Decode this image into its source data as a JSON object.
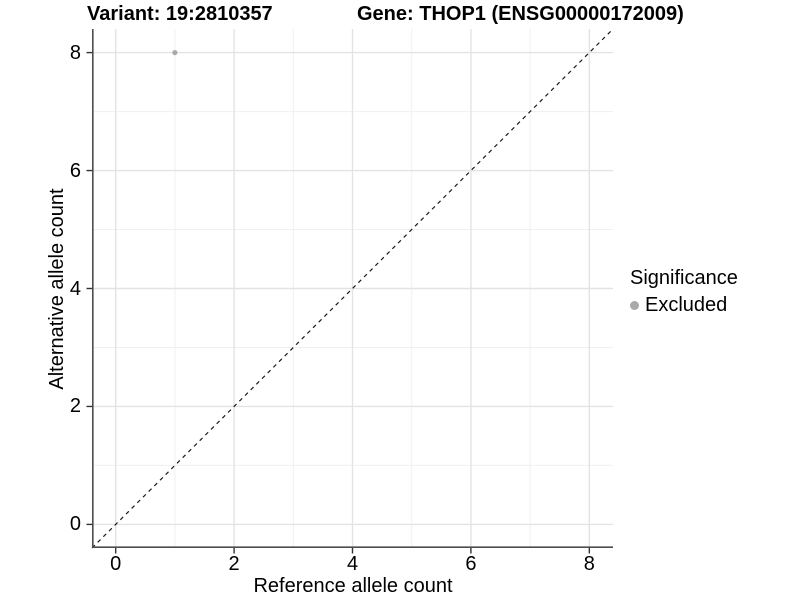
{
  "header": {
    "variant_title": "Variant: 19:2810357",
    "gene_title": "Gene: THOP1 (ENSG00000172009)"
  },
  "axes": {
    "x_label": "Reference allele count",
    "y_label": "Alternative allele count"
  },
  "legend": {
    "title": "Significance",
    "items": [
      {
        "label": "Excluded",
        "color": "#a9a9a9"
      }
    ]
  },
  "chart_data": {
    "type": "scatter",
    "title": "Variant: 19:2810357 — Gene: THOP1 (ENSG00000172009)",
    "xlabel": "Reference allele count",
    "ylabel": "Alternative allele count",
    "xlim": [
      -0.4,
      8.4
    ],
    "ylim": [
      -0.4,
      8.4
    ],
    "x_ticks": [
      0,
      2,
      4,
      6,
      8
    ],
    "y_ticks": [
      0,
      2,
      4,
      6,
      8
    ],
    "x_minor": [
      1,
      3,
      5,
      7
    ],
    "y_minor": [
      1,
      3,
      5,
      7
    ],
    "grid": "on",
    "legend_position": "right",
    "series": [
      {
        "name": "Excluded",
        "color": "#a9a9a9",
        "points": [
          {
            "x": 1,
            "y": 8
          }
        ]
      }
    ],
    "reference_line": {
      "kind": "identity",
      "slope": 1,
      "intercept": 0,
      "style": "dashed",
      "color": "#1a1a1a"
    }
  },
  "style": {
    "grid_major_color": "#e3e3e3",
    "grid_minor_color": "#f0f0f0",
    "axis_line_color": "#4d4d4d",
    "tick_color": "#333333",
    "point_radius": 2.6,
    "legend_dot_radius": 4.5
  }
}
